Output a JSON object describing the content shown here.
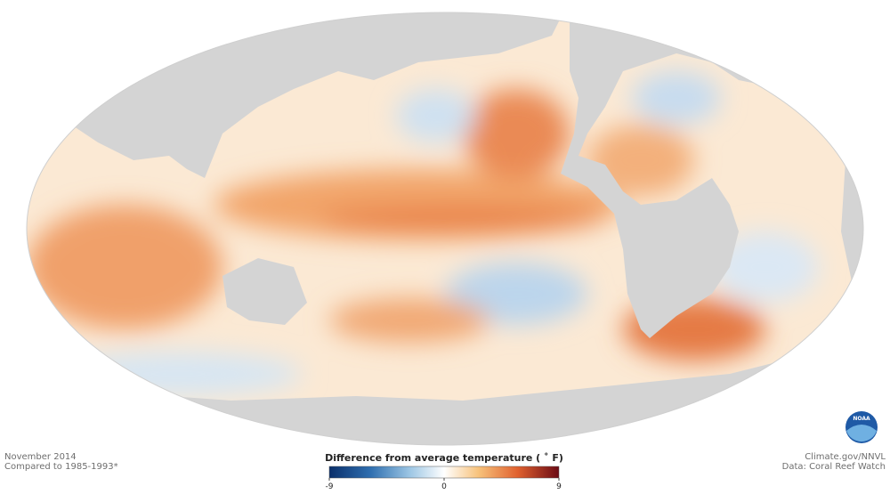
{
  "caption": {
    "date": "November 2014",
    "baseline": "Compared to 1985-1993*"
  },
  "legend": {
    "title": "Difference from average temperature ( ˚ F)",
    "range": [
      -9,
      9
    ],
    "ticks": [
      -9,
      0,
      9
    ]
  },
  "credits": {
    "source": "Climate.gov/NNVL",
    "data": "Data: Coral Reef Watch"
  },
  "logo": {
    "text": "NOAA"
  }
}
